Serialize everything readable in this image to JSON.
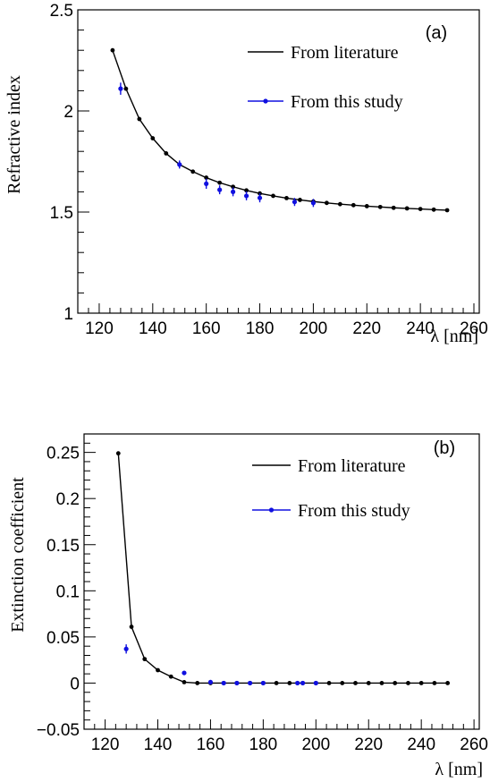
{
  "chart_data": [
    {
      "type": "line",
      "panel_label": "(a)",
      "xlabel": "λ [nm]",
      "ylabel": "Refractive index",
      "xlim": [
        112,
        262
      ],
      "ylim": [
        1,
        2.5
      ],
      "xticks": [
        120,
        140,
        160,
        180,
        200,
        220,
        240,
        260
      ],
      "yticks": [
        1,
        1.5,
        2,
        2.5
      ],
      "ytick_labels": [
        "1",
        "1.5",
        "2",
        "2.5"
      ],
      "legend_position": "top-right",
      "series": [
        {
          "name": "From literature",
          "color": "#000000",
          "x": [
            125,
            130,
            135,
            140,
            145,
            150,
            155,
            160,
            165,
            170,
            175,
            180,
            185,
            190,
            195,
            200,
            205,
            210,
            215,
            220,
            225,
            230,
            235,
            240,
            245,
            250
          ],
          "y": [
            2.3,
            2.11,
            1.96,
            1.865,
            1.79,
            1.735,
            1.7,
            1.67,
            1.645,
            1.625,
            1.607,
            1.592,
            1.58,
            1.569,
            1.56,
            1.552,
            1.545,
            1.539,
            1.534,
            1.529,
            1.525,
            1.521,
            1.518,
            1.515,
            1.512,
            1.509
          ]
        },
        {
          "name": "From this study",
          "color": "#1010e0",
          "x": [
            128,
            150,
            160,
            165,
            170,
            175,
            180,
            193,
            200
          ],
          "y": [
            2.11,
            1.735,
            1.64,
            1.61,
            1.6,
            1.58,
            1.57,
            1.55,
            1.545
          ],
          "yerr": [
            0.03,
            0.02,
            0.025,
            0.022,
            0.022,
            0.022,
            0.022,
            0.02,
            0.02
          ]
        }
      ]
    },
    {
      "type": "line",
      "panel_label": "(b)",
      "xlabel": "λ [nm]",
      "ylabel": "Extinction coefficient",
      "xlim": [
        112,
        262
      ],
      "ylim": [
        -0.05,
        0.27
      ],
      "xticks": [
        120,
        140,
        160,
        180,
        200,
        220,
        240,
        260
      ],
      "yticks": [
        -0.05,
        0,
        0.05,
        0.1,
        0.15,
        0.2,
        0.25
      ],
      "ytick_labels": [
        "−0.05",
        "0",
        "0.05",
        "0.1",
        "0.15",
        "0.2",
        "0.25"
      ],
      "legend_position": "top-right",
      "series": [
        {
          "name": "From literature",
          "color": "#000000",
          "x": [
            125,
            130,
            135,
            140,
            145,
            150,
            155,
            160,
            165,
            170,
            175,
            180,
            185,
            190,
            195,
            200,
            205,
            210,
            215,
            220,
            225,
            230,
            235,
            240,
            245,
            250
          ],
          "y": [
            0.249,
            0.061,
            0.026,
            0.014,
            0.007,
            0.001,
            0,
            0,
            0,
            0,
            0,
            0,
            0,
            0,
            0,
            0,
            0,
            0,
            0,
            0,
            0,
            0,
            0,
            0,
            0,
            0
          ]
        },
        {
          "name": "From this study",
          "color": "#1010e0",
          "x": [
            128,
            150,
            160,
            165,
            170,
            175,
            180,
            193,
            195,
            200
          ],
          "y": [
            0.037,
            0.011,
            0.001,
            0,
            0,
            0,
            0,
            0,
            0,
            0
          ],
          "yerr": [
            0.005,
            0,
            0,
            0,
            0,
            0,
            0,
            0,
            0,
            0
          ]
        }
      ]
    }
  ]
}
